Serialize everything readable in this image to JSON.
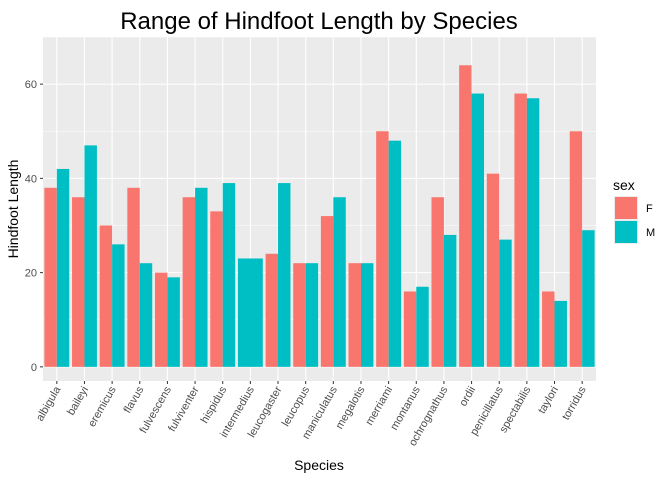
{
  "chart_data": {
    "type": "bar",
    "title": "Range of Hindfoot Length by Species",
    "xlabel": "Species",
    "ylabel": "Hindfoot Length",
    "ylim": [
      -3,
      70
    ],
    "yticks": [
      0,
      20,
      40,
      60
    ],
    "grid": true,
    "legend_position": "right",
    "legend_title": "sex",
    "categories": [
      "albigula",
      "baileyi",
      "eremicus",
      "flavus",
      "fulvescens",
      "fulviventer",
      "hispidus",
      "intermedius",
      "leucogaster",
      "leucopus",
      "maniculatus",
      "megalotis",
      "merriami",
      "montanus",
      "ochrognathus",
      "ordii",
      "penicillatus",
      "spectabilis",
      "taylori",
      "torridus"
    ],
    "series": [
      {
        "name": "F",
        "color": "#F8766D",
        "values": [
          38,
          36,
          30,
          38,
          20,
          36,
          33,
          null,
          24,
          22,
          32,
          22,
          50,
          16,
          36,
          64,
          41,
          58,
          16,
          50
        ]
      },
      {
        "name": "M",
        "color": "#00BFC4",
        "values": [
          42,
          47,
          26,
          22,
          19,
          38,
          39,
          23,
          39,
          22,
          36,
          22,
          48,
          17,
          28,
          58,
          27,
          57,
          14,
          29
        ]
      }
    ],
    "panel_color": "#EBEBEB"
  }
}
